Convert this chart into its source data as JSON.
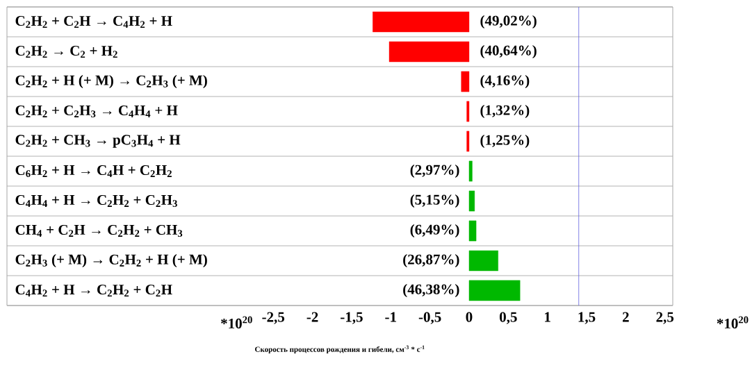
{
  "chart_data": {
    "type": "bar",
    "orientation": "horizontal",
    "xlabel": "Скорость процессов рождения и гибели, см$^{-3}$ * с$^{-1}$",
    "categories": [
      "C$_{2}$H$_{2}$ + C$_{2}$H → C$_{4}$H$_{2}$ + H",
      "C$_{2}$H$_{2}$ → C$_{2}$ + H$_{2}$",
      "C$_{2}$H$_{2}$ + H (+ M) → C$_{2}$H$_{3}$ (+ M)",
      "C$_{2}$H$_{2}$ + C$_{2}$H$_{3}$ → C$_{4}$H$_{4}$ + H",
      "C$_{2}$H$_{2}$ + CH$_{3}$ → pC$_{3}$H$_{4}$ + H",
      "C$_{6}$H$_{2}$ + H → C$_{4}$H + C$_{2}$H$_{2}$",
      "C$_{4}$H$_{4}$ + H → C$_{2}$H$_{2}$ + C$_{2}$H$_{3}$",
      "CH$_{4}$ + C$_{2}$H → C$_{2}$H$_{2}$ + CH$_{3}$",
      "C$_{2}$H$_{3}$ (+ M) → C$_{2}$H$_{2}$ + H (+ M)",
      "C$_{4}$H$_{2}$ + H → C$_{2}$H$_{2}$ + C$_{2}$H"
    ],
    "values": [
      -1.23,
      -1.02,
      -0.1,
      -0.03,
      -0.03,
      0.04,
      0.07,
      0.09,
      0.37,
      0.65
    ],
    "colors": [
      "#ff0000",
      "#ff0000",
      "#ff0000",
      "#ff0000",
      "#ff0000",
      "#00b800",
      "#00b800",
      "#00b800",
      "#00b800",
      "#00b800"
    ],
    "xlim": [
      -5.9,
      2.6
    ],
    "xticks": [
      {
        "value": -2.5,
        "label": "-2,5"
      },
      -2,
      {
        "value": -1.5,
        "label": "-1,5"
      },
      -1,
      {
        "value": -0.5,
        "label": "-0,5"
      },
      0,
      {
        "value": 0.5,
        "label": "0,5"
      },
      1,
      {
        "value": 1.5,
        "label": "1,5"
      },
      2,
      {
        "value": 2.5,
        "label": "2,5"
      }
    ],
    "ref_lines": [
      {
        "axis": "x",
        "value": 1.4,
        "color": "#6060e0"
      }
    ],
    "grid": "y",
    "annotations": [
      "*10$^{20}$",
      "*10$^{20}$",
      "(49,02%)",
      "(40,64%)",
      "(4,16%)",
      "(1,32%)",
      "(1,25%)",
      "(2,97%)",
      "(5,15%)",
      "(6,49%)",
      "(26,87%)",
      "(46,38%)"
    ]
  }
}
